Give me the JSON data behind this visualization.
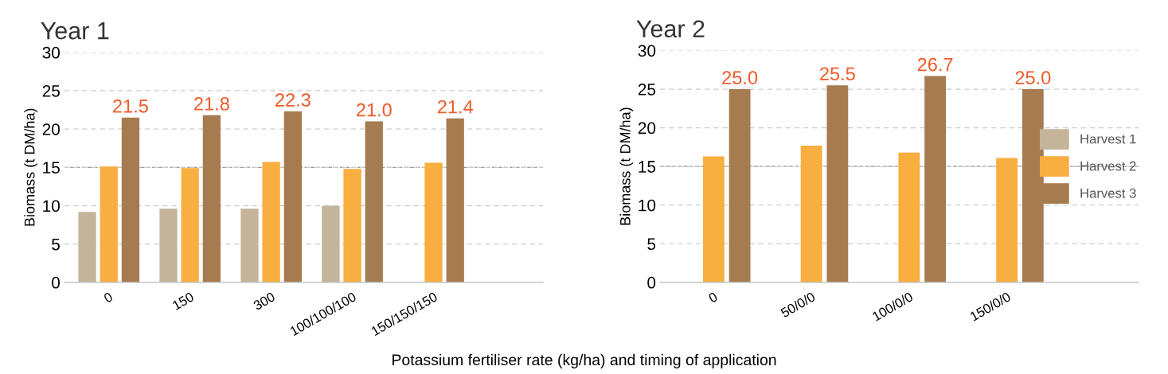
{
  "chart_data": [
    {
      "type": "bar",
      "title": "Year 1",
      "ylabel": "Biomass (t DM/ha)",
      "xlabel": "Potassium fertiliser rate (kg/ha) and timing of application",
      "categories": [
        "0",
        "150",
        "300",
        "100/100/100",
        "150/150/150"
      ],
      "series": [
        {
          "color": "#c4b49a",
          "values": [
            9.2,
            9.6,
            9.6,
            10.0,
            null
          ]
        },
        {
          "color": "#f9ae40",
          "values": [
            15.1,
            14.9,
            15.7,
            14.8,
            15.6
          ]
        },
        {
          "color": "#a67b50",
          "values": [
            21.5,
            21.8,
            22.3,
            21.0,
            21.4
          ],
          "value_labels": [
            "21.5",
            "21.8",
            "22.3",
            "21.0",
            "21.4"
          ]
        }
      ],
      "ylim": [
        0,
        30
      ],
      "yticks": [
        0,
        5,
        10,
        15,
        20,
        25,
        30
      ],
      "grid": "y",
      "legend": false,
      "ref_lines": [
        {
          "axis": "y",
          "value": 15,
          "color": "#999999",
          "line_style": "dashed"
        }
      ]
    },
    {
      "type": "bar",
      "title": "Year 2",
      "ylabel": "Biomass (t DM/ha)",
      "categories": [
        "0",
        "50/0/0",
        "100/0/0",
        "150/0/0"
      ],
      "series": [
        {
          "name": "Harvest 1",
          "color": "#c4b49a",
          "values": [
            null,
            null,
            null,
            null
          ]
        },
        {
          "name": "Harvest 2",
          "color": "#f9ae40",
          "values": [
            16.3,
            17.7,
            16.8,
            16.1
          ]
        },
        {
          "name": "Harvest 3",
          "color": "#a67b50",
          "values": [
            25.0,
            25.5,
            26.7,
            25.0
          ],
          "value_labels": [
            "25.0",
            "25.5",
            "26.7",
            "25.0"
          ]
        }
      ],
      "ylim": [
        0,
        30
      ],
      "yticks": [
        0,
        5,
        10,
        15,
        20,
        25,
        30
      ],
      "grid": "y",
      "legend": "right",
      "ref_lines": [
        {
          "axis": "y",
          "value": 15,
          "color": "#999999",
          "line_style": "dashed"
        }
      ]
    }
  ]
}
